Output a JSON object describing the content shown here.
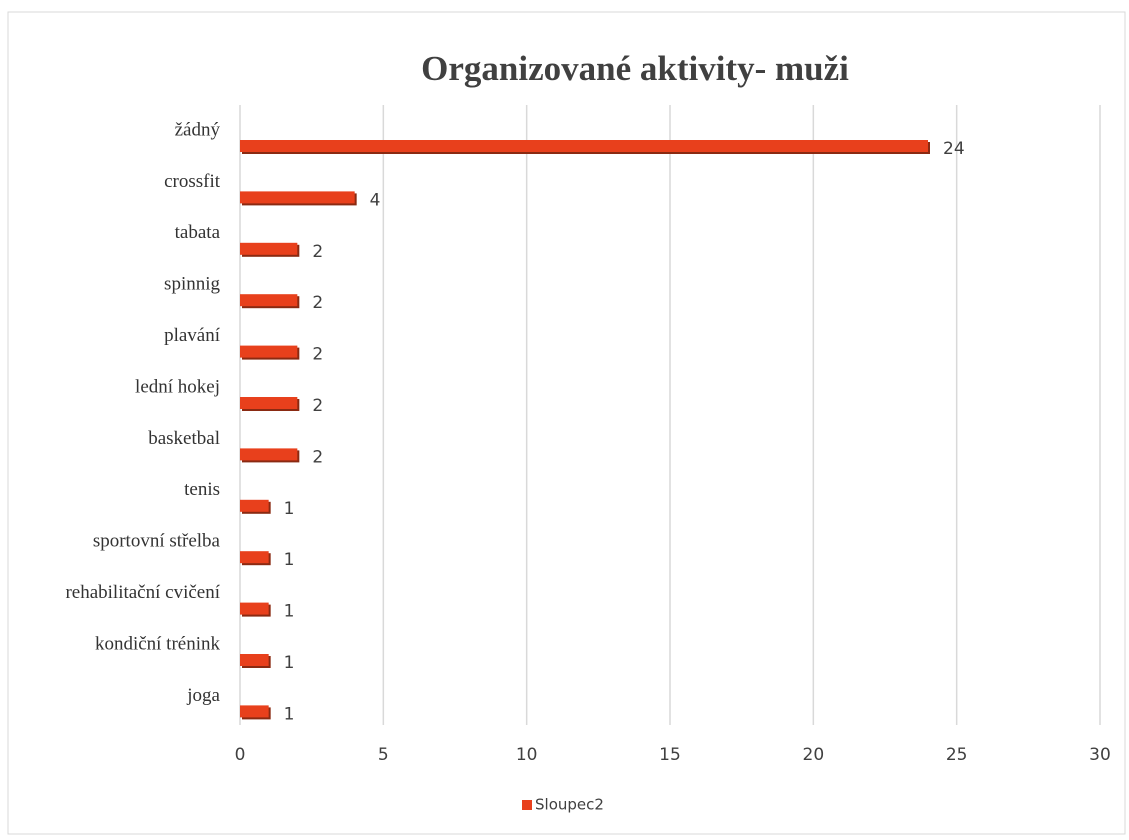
{
  "chart_data": {
    "type": "bar",
    "orientation": "horizontal",
    "title": "Organizované aktivity- muži",
    "categories": [
      "žádný",
      "crossfit",
      "tabata",
      "spinnig",
      "plavání",
      "lední hokej",
      "basketbal",
      "tenis",
      "sportovní střelba",
      "rehabilitační cvičení",
      "kondiční trénink",
      "joga"
    ],
    "series": [
      {
        "name": "Sloupec2",
        "color": "#e8401c",
        "values": [
          24,
          4,
          2,
          2,
          2,
          2,
          2,
          1,
          1,
          1,
          1,
          1
        ]
      }
    ],
    "xlim": [
      0,
      30
    ],
    "xticks": [
      0,
      5,
      10,
      15,
      20,
      25,
      30
    ],
    "grid": true,
    "legend": "bottom"
  }
}
